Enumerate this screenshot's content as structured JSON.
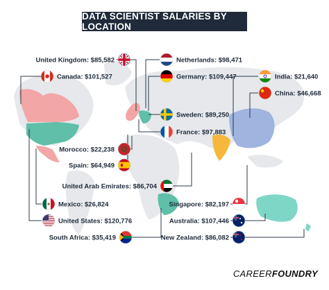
{
  "header": {
    "title": "DATA SCIENTIST SALARIES BY LOCATION"
  },
  "brand": {
    "part1": "CAREER",
    "part2": "FOUNDRY"
  },
  "colors": {
    "north_america": "#f2a6a6",
    "usa": "#5fbfa8",
    "mexico": "#f2a6a6",
    "europe": "#f2a6a6",
    "asia": "#9fb4df",
    "india": "#f6b83c",
    "africa": "#5fbfa8",
    "oceania": "#7ed6c6",
    "land_base": "#e6e8eb",
    "leader": "#2b3a4a"
  },
  "chart_data": {
    "type": "table",
    "title": "DATA SCIENTIST SALARIES BY LOCATION",
    "unit": "$",
    "entries": [
      {
        "country": "United Kingdom",
        "salary": 85582,
        "label": "United Kingdom: $85,582",
        "flag": "uk-flag-icon"
      },
      {
        "country": "Netherlands",
        "salary": 98471,
        "label": "Netherlands: $98,471",
        "flag": "netherlands-flag-icon"
      },
      {
        "country": "Canada",
        "salary": 101527,
        "label": "Canada: $101,527",
        "flag": "canada-flag-icon"
      },
      {
        "country": "Germany",
        "salary": 109447,
        "label": "Germany: $109,447",
        "flag": "germany-flag-icon"
      },
      {
        "country": "India",
        "salary": 21640,
        "label": "India: $21,640",
        "flag": "india-flag-icon"
      },
      {
        "country": "China",
        "salary": 46668,
        "label": "China: $46,668",
        "flag": "china-flag-icon"
      },
      {
        "country": "Sweden",
        "salary": 89250,
        "label": "Sweden: $89,250",
        "flag": "sweden-flag-icon"
      },
      {
        "country": "France",
        "salary": 97883,
        "label": "France: $97,883",
        "flag": "france-flag-icon"
      },
      {
        "country": "Morocco",
        "salary": 22238,
        "label": "Morocco: $22,238",
        "flag": "morocco-flag-icon"
      },
      {
        "country": "Spain",
        "salary": 64949,
        "label": "Spain: $64,949",
        "flag": "spain-flag-icon"
      },
      {
        "country": "United Arab Emirates",
        "salary": 86704,
        "label": "United Arab Emirates: $86,704",
        "flag": "uae-flag-icon"
      },
      {
        "country": "Mexico",
        "salary": 26824,
        "label": "Mexico: $26,824",
        "flag": "mexico-flag-icon"
      },
      {
        "country": "Singapore",
        "salary": 82197,
        "label": "Singapore: $82,197",
        "flag": "singapore-flag-icon"
      },
      {
        "country": "United States",
        "salary": 120776,
        "label": "United States: $120,776",
        "flag": "usa-flag-icon"
      },
      {
        "country": "Australia",
        "salary": 107446,
        "label": "Australia: $107,446",
        "flag": "australia-flag-icon"
      },
      {
        "country": "South Africa",
        "salary": 35419,
        "label": "South Africa: $35,419",
        "flag": "south-africa-flag-icon"
      },
      {
        "country": "New Zealand",
        "salary": 86082,
        "label": "New Zealand: $86,082",
        "flag": "new-zealand-flag-icon"
      }
    ]
  }
}
